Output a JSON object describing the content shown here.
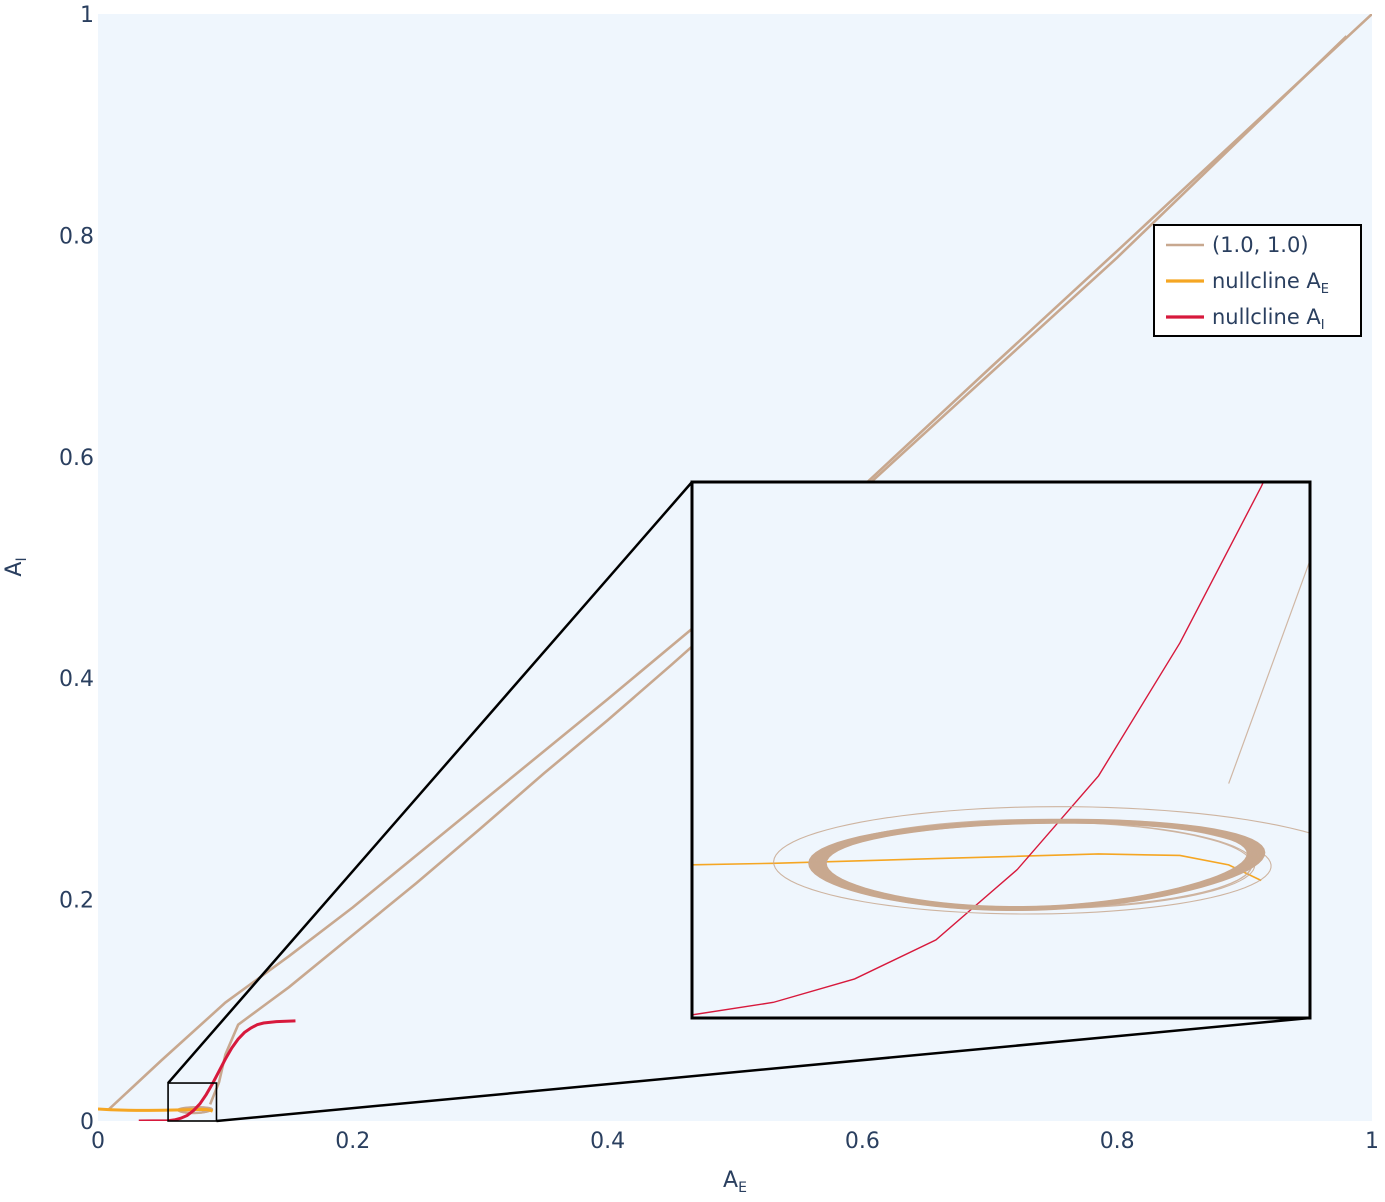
{
  "chart_data": {
    "type": "line",
    "title": "",
    "xlabel": "A",
    "xlabel_sub": "E",
    "ylabel": "A",
    "ylabel_sub": "I",
    "xlim": [
      0,
      1
    ],
    "ylim": [
      0,
      1
    ],
    "x_ticks": [
      0,
      0.2,
      0.4,
      0.6,
      0.8,
      1
    ],
    "x_tick_labels": [
      "0",
      "0.2",
      "0.4",
      "0.6",
      "0.8",
      "1"
    ],
    "y_ticks": [
      0,
      0.2,
      0.4,
      0.6,
      0.8,
      1
    ],
    "y_tick_labels": [
      "0",
      "0.2",
      "0.4",
      "0.6",
      "0.8",
      "1"
    ],
    "grid": false,
    "background_color": "#eff6fd",
    "legend": {
      "position": "top-right",
      "entries": [
        {
          "label": "(1.0, 1.0)",
          "sub": "",
          "color": "#c8a88f"
        },
        {
          "label": "nullcline A",
          "sub": "E",
          "color": "#f5a623"
        },
        {
          "label": "nullcline A",
          "sub": "I",
          "color": "#d7193c"
        }
      ]
    },
    "series": [
      {
        "name": "(1.0, 1.0)",
        "kind": "trajectory",
        "color": "#c8a88f",
        "outbound": {
          "x": [
            0.0082,
            0.05,
            0.1,
            0.15,
            0.2,
            0.3,
            0.4,
            0.5,
            0.6,
            0.7,
            0.8,
            0.9,
            1.0
          ],
          "y": [
            0.0102,
            0.055,
            0.107,
            0.149,
            0.193,
            0.287,
            0.381,
            0.477,
            0.573,
            0.68,
            0.786,
            0.893,
            1.0
          ]
        },
        "return_path": {
          "x": [
            0.98,
            0.8,
            0.6,
            0.5,
            0.45,
            0.4,
            0.35,
            0.3,
            0.25,
            0.2,
            0.15,
            0.13,
            0.11,
            0.1,
            0.095,
            0.088
          ],
          "y": [
            0.98,
            0.78,
            0.57,
            0.463,
            0.412,
            0.362,
            0.314,
            0.264,
            0.215,
            0.168,
            0.121,
            0.104,
            0.087,
            0.06,
            0.035,
            0.015
          ]
        },
        "limit_cycle": {
          "center_x": 0.0762,
          "center_y": 0.0098,
          "radius_x": 0.0132,
          "radius_y": 0.00275
        }
      },
      {
        "name": "nullcline A_E",
        "kind": "nullcline",
        "color": "#f5a623",
        "x": [
          0.0,
          0.01,
          0.02,
          0.03,
          0.04,
          0.05,
          0.06,
          0.07,
          0.08,
          0.085,
          0.088,
          0.09
        ],
        "y": [
          0.0108,
          0.0102,
          0.0098,
          0.0096,
          0.0096,
          0.0097,
          0.0099,
          0.0102,
          0.0105,
          0.0104,
          0.0098,
          0.0088
        ]
      },
      {
        "name": "nullcline A_I",
        "kind": "nullcline",
        "color": "#d7193c",
        "x": [
          0.032,
          0.055,
          0.06,
          0.065,
          0.07,
          0.075,
          0.08,
          0.085,
          0.09,
          0.095,
          0.1,
          0.105,
          0.11,
          0.115,
          0.12,
          0.125,
          0.13,
          0.14,
          0.155
        ],
        "y": [
          0.0,
          0.0002,
          0.001,
          0.0025,
          0.005,
          0.0095,
          0.0155,
          0.024,
          0.034,
          0.045,
          0.056,
          0.066,
          0.074,
          0.08,
          0.084,
          0.087,
          0.0885,
          0.0898,
          0.0905
        ]
      }
    ],
    "inset": {
      "source_x": [
        0.055,
        0.093
      ],
      "source_y": [
        0.0,
        0.0343
      ]
    }
  }
}
